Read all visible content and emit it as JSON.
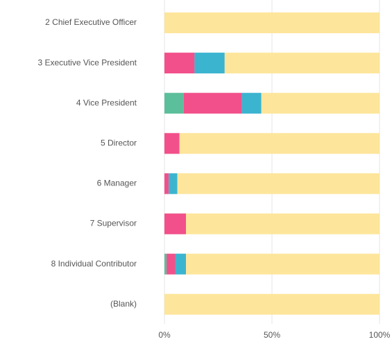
{
  "chart_data": {
    "type": "stacked-barh",
    "categories": [
      "2 Chief Executive Officer",
      "3 Executive Vice President",
      "4 Vice President",
      "5 Director",
      "6 Manager",
      "7 Supervisor",
      "8 Individual Contributor",
      "(Blank)"
    ],
    "series": [
      {
        "color": "#5cbf9c",
        "values": [
          0,
          0,
          9,
          0,
          0,
          0,
          1,
          0
        ]
      },
      {
        "color": "#f2508a",
        "values": [
          0,
          14,
          27,
          7,
          2,
          10,
          4,
          0
        ]
      },
      {
        "color": "#3bb4d0",
        "values": [
          0,
          14,
          9,
          0,
          4,
          0,
          5,
          0
        ]
      },
      {
        "color": "#fde59b",
        "values": [
          100,
          72,
          55,
          93,
          94,
          90,
          90,
          100
        ]
      }
    ],
    "xlim": [
      0,
      100
    ],
    "xticks": [
      {
        "value": 0,
        "label": "0%"
      },
      {
        "value": 50,
        "label": "50%"
      },
      {
        "value": 100,
        "label": "100%"
      }
    ],
    "grid": true
  }
}
